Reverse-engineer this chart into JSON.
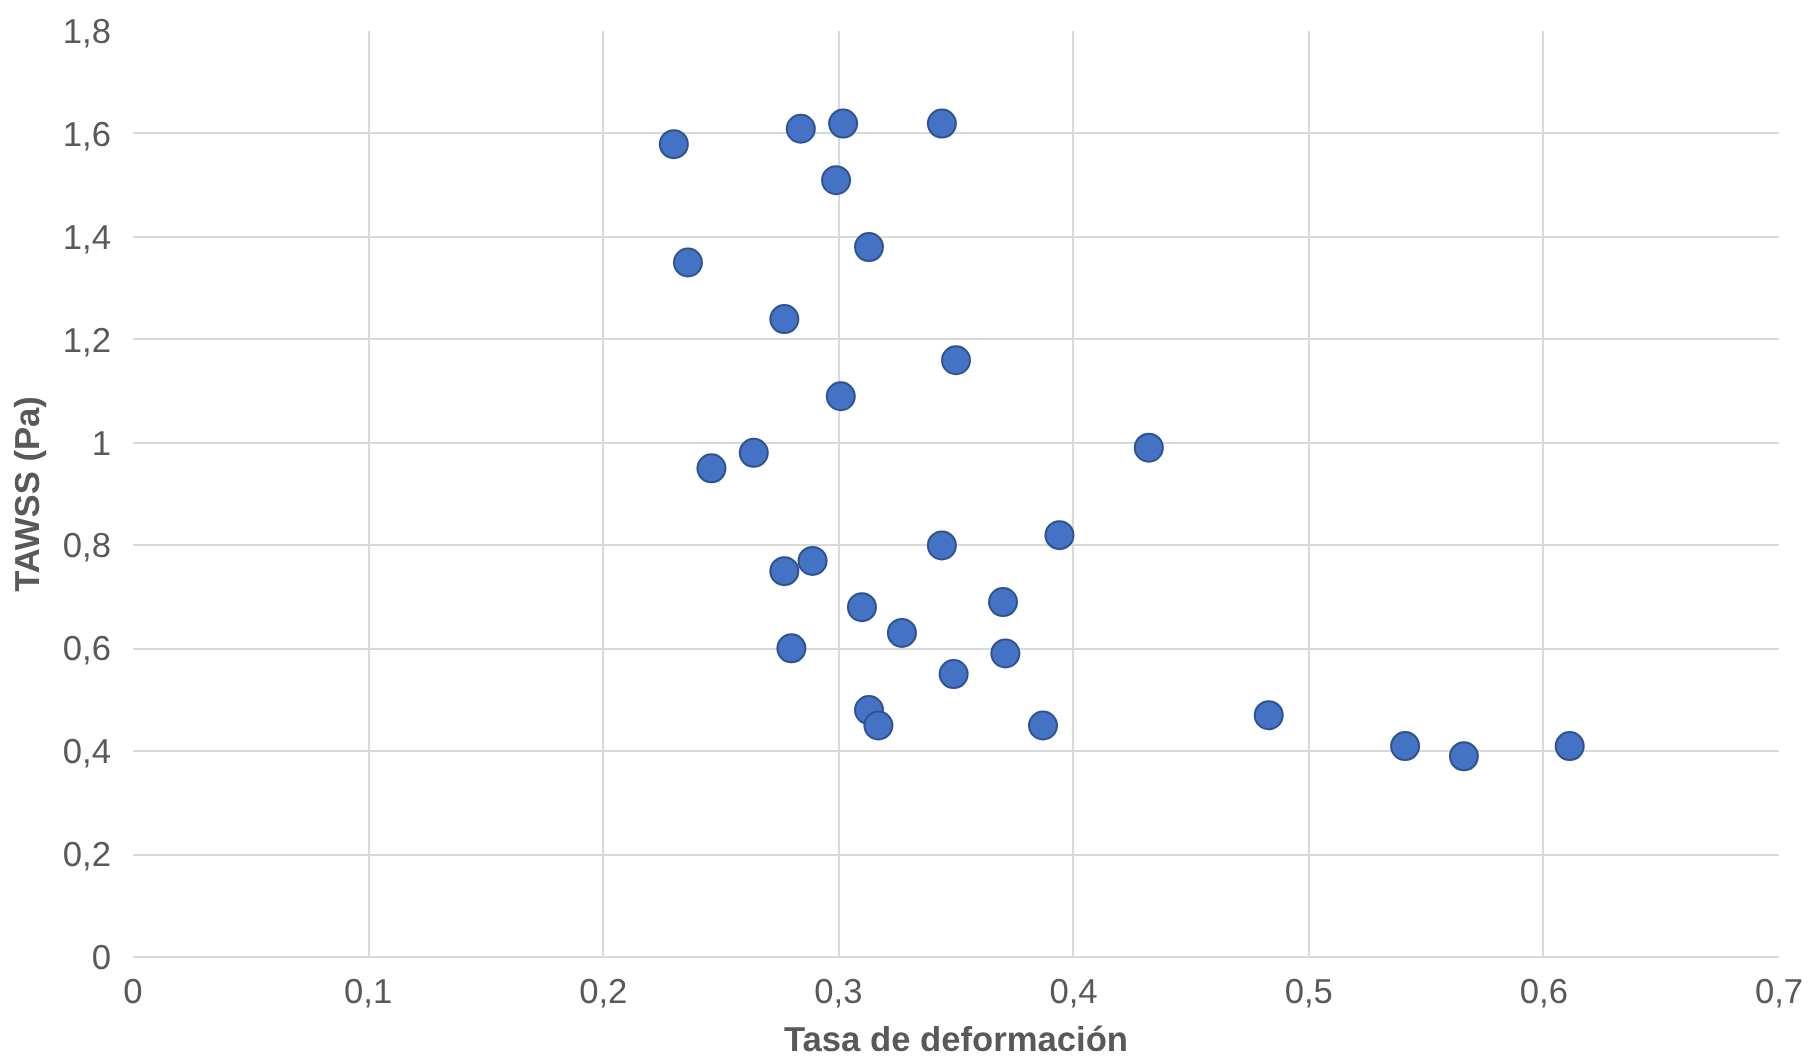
{
  "chart_data": {
    "type": "scatter",
    "xlabel": "Tasa de deformación",
    "ylabel": "TAWSS (Pa)",
    "x": [
      0.23,
      0.284,
      0.302,
      0.344,
      0.299,
      0.236,
      0.313,
      0.277,
      0.35,
      0.301,
      0.432,
      0.264,
      0.246,
      0.394,
      0.344,
      0.289,
      0.277,
      0.37,
      0.31,
      0.327,
      0.28,
      0.371,
      0.349,
      0.313,
      0.317,
      0.387,
      0.483,
      0.541,
      0.566,
      0.611
    ],
    "values": [
      1.58,
      1.61,
      1.62,
      1.62,
      1.51,
      1.35,
      1.38,
      1.24,
      1.16,
      1.09,
      0.99,
      0.98,
      0.95,
      0.82,
      0.8,
      0.77,
      0.75,
      0.69,
      0.68,
      0.63,
      0.6,
      0.59,
      0.55,
      0.48,
      0.45,
      0.45,
      0.47,
      0.41,
      0.39,
      0.41
    ],
    "color": "#4472c4",
    "marker": "circle",
    "grid": true,
    "xlim": [
      0,
      0.7
    ],
    "xticks": [
      {
        "value": 0,
        "label": "0"
      },
      {
        "value": 0.1,
        "label": "0,1"
      },
      {
        "value": 0.2,
        "label": "0,2"
      },
      {
        "value": 0.3,
        "label": "0,3"
      },
      {
        "value": 0.4,
        "label": "0,4"
      },
      {
        "value": 0.5,
        "label": "0,5"
      },
      {
        "value": 0.6,
        "label": "0,6"
      },
      {
        "value": 0.7,
        "label": "0,7"
      }
    ],
    "ylim": [
      0,
      1.8
    ],
    "yticks": [
      {
        "value": 0,
        "label": "0"
      },
      {
        "value": 0.2,
        "label": "0,2"
      },
      {
        "value": 0.4,
        "label": "0,4"
      },
      {
        "value": 0.6,
        "label": "0,6"
      },
      {
        "value": 0.8,
        "label": "0,8"
      },
      {
        "value": 1,
        "label": "1"
      },
      {
        "value": 1.2,
        "label": "1,2"
      },
      {
        "value": 1.4,
        "label": "1,4"
      },
      {
        "value": 1.6,
        "label": "1,6"
      },
      {
        "value": 1.8,
        "label": "1,8"
      }
    ]
  }
}
